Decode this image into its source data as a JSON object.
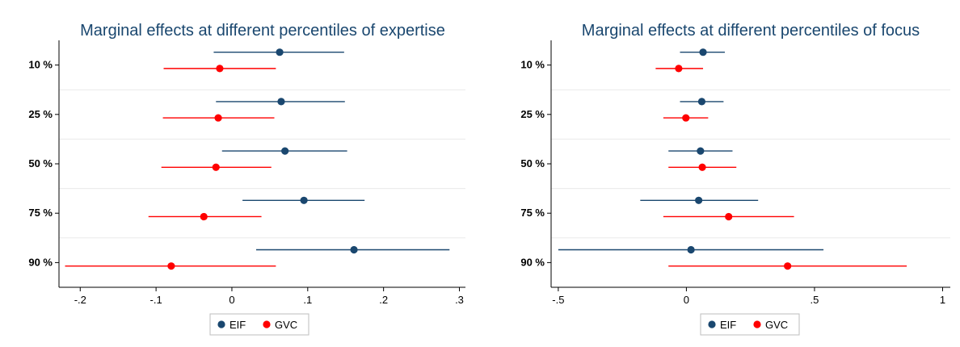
{
  "colors": {
    "EIF": "#1a476f",
    "GVC": "#ff0000",
    "title": "#1a476f"
  },
  "chart_data": [
    {
      "type": "scatter",
      "title": "Marginal effects at different percentiles of expertise",
      "categories": [
        "10 %",
        "25 %",
        "50 %",
        "75 %",
        "90 %"
      ],
      "xlim": [
        -0.228,
        0.308
      ],
      "xticks": [
        -0.2,
        -0.1,
        0,
        0.1,
        0.2,
        0.3
      ],
      "xtick_labels": [
        "-.2",
        "-.1",
        "0",
        ".1",
        ".2",
        ".3"
      ],
      "grid": true,
      "legend_position": "bottom",
      "series": [
        {
          "name": "EIF",
          "color": "#1a476f",
          "values": [
            0.063,
            0.065,
            0.07,
            0.095,
            0.161
          ],
          "ci_low": [
            -0.024,
            -0.021,
            -0.013,
            0.014,
            0.032
          ],
          "ci_high": [
            0.148,
            0.149,
            0.152,
            0.175,
            0.287
          ]
        },
        {
          "name": "GVC",
          "color": "#ff0000",
          "values": [
            -0.016,
            -0.018,
            -0.021,
            -0.037,
            -0.08
          ],
          "ci_low": [
            -0.09,
            -0.091,
            -0.093,
            -0.11,
            -0.22
          ],
          "ci_high": [
            0.058,
            0.056,
            0.052,
            0.039,
            0.058
          ]
        }
      ]
    },
    {
      "type": "scatter",
      "title": "Marginal effects at different percentiles of focus",
      "categories": [
        "10 %",
        "25 %",
        "50 %",
        "75 %",
        "90 %"
      ],
      "xlim": [
        -0.528,
        1.03
      ],
      "xticks": [
        -0.5,
        0,
        0.5,
        1
      ],
      "xtick_labels": [
        "-.5",
        "0",
        ".5",
        "1"
      ],
      "grid": true,
      "legend_position": "bottom",
      "series": [
        {
          "name": "EIF",
          "color": "#1a476f",
          "values": [
            0.065,
            0.06,
            0.055,
            0.048,
            0.018
          ],
          "ci_low": [
            -0.025,
            -0.025,
            -0.07,
            -0.18,
            -0.5
          ],
          "ci_high": [
            0.15,
            0.145,
            0.18,
            0.28,
            0.535
          ]
        },
        {
          "name": "GVC",
          "color": "#ff0000",
          "values": [
            -0.03,
            -0.002,
            0.062,
            0.165,
            0.395
          ],
          "ci_low": [
            -0.12,
            -0.09,
            -0.07,
            -0.09,
            -0.07
          ],
          "ci_high": [
            0.065,
            0.085,
            0.195,
            0.42,
            0.86
          ]
        }
      ]
    }
  ]
}
